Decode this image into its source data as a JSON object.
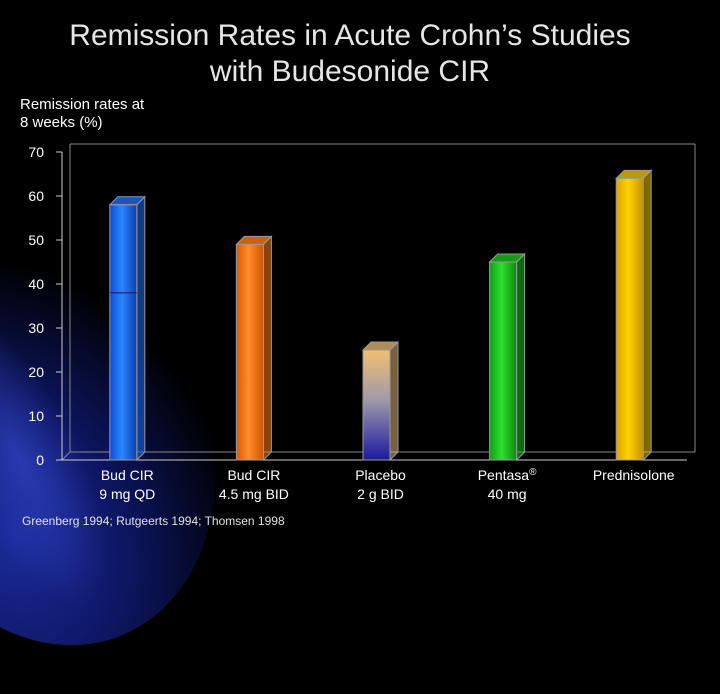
{
  "title_line1": "Remission Rates in Acute Crohn’s Studies",
  "title_line2": "with Budesonide CIR",
  "ylabel_line1": "Remission rates at",
  "ylabel_line2": "8 weeks (%)",
  "footnote": "Greenberg 1994; Rutgeerts 1994; Thomsen 1998",
  "chart_data": {
    "type": "bar",
    "title": "Remission Rates in Acute Crohn’s Studies with Budesonide CIR",
    "ylabel": "Remission rates at 8 weeks (%)",
    "xlabel": "",
    "ylim": [
      0,
      70
    ],
    "yticks": [
      0,
      10,
      20,
      30,
      40,
      50,
      60,
      70
    ],
    "grid": false,
    "categories": [
      {
        "line1": "Bud CIR",
        "line2": "9 mg QD",
        "sup": ""
      },
      {
        "line1": "Bud CIR",
        "line2": "4.5 mg BID",
        "sup": ""
      },
      {
        "line1": "Placebo",
        "line2": "2 g BID",
        "sup": ""
      },
      {
        "line1": "Pentasa",
        "line2": "40 mg",
        "sup": "®"
      },
      {
        "line1": "Prednisolone",
        "line2": "",
        "sup": ""
      }
    ],
    "values": [
      58,
      49,
      25,
      45,
      64
    ],
    "marker_line_values": [
      38,
      null,
      null,
      null,
      null
    ],
    "colors": [
      "#1a6cf0",
      "#ff7a10",
      "#d9b070",
      "#17c21a",
      "#e8c000"
    ]
  }
}
